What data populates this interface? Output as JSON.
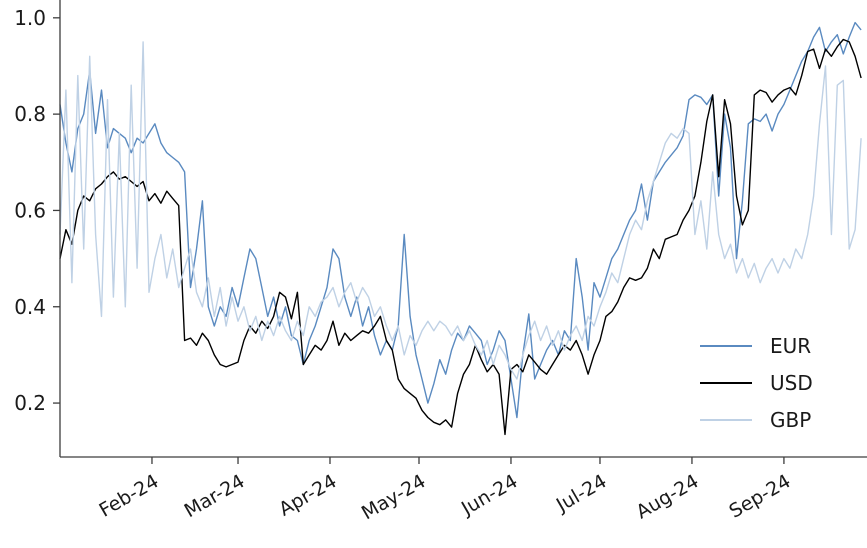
{
  "chart_data": {
    "type": "line",
    "title": "",
    "xlabel": "",
    "ylabel": "",
    "grid": false,
    "legend_position": "lower right",
    "xlim": [
      0,
      272
    ],
    "ylim": [
      0.088,
      1.037
    ],
    "yticks": [
      0.2,
      0.4,
      0.6,
      0.8,
      1.0
    ],
    "ytick_labels": [
      "0.2",
      "0.4",
      "0.6",
      "0.8",
      "1.0"
    ],
    "xticks": {
      "positions": [
        31,
        60,
        91,
        121,
        152,
        182,
        213,
        244
      ],
      "labels": [
        "Feb-24",
        "Mar-24",
        "Apr-24",
        "May-24",
        "Jun-24",
        "Jul-24",
        "Aug-24",
        "Sep-24"
      ]
    },
    "x_unit": "days from start (2-day sampling, Jan 1 to Sep 27, 2024)",
    "x": [
      0,
      2,
      4,
      6,
      8,
      10,
      12,
      14,
      16,
      18,
      20,
      22,
      24,
      26,
      28,
      30,
      32,
      34,
      36,
      38,
      40,
      42,
      44,
      46,
      48,
      50,
      52,
      54,
      56,
      58,
      60,
      62,
      64,
      66,
      68,
      70,
      72,
      74,
      76,
      78,
      80,
      82,
      84,
      86,
      88,
      90,
      92,
      94,
      96,
      98,
      100,
      102,
      104,
      106,
      108,
      110,
      112,
      114,
      116,
      118,
      120,
      122,
      124,
      126,
      128,
      130,
      132,
      134,
      136,
      138,
      140,
      142,
      144,
      146,
      148,
      150,
      152,
      154,
      156,
      158,
      160,
      162,
      164,
      166,
      168,
      170,
      172,
      174,
      176,
      178,
      180,
      182,
      184,
      186,
      188,
      190,
      192,
      194,
      196,
      198,
      200,
      202,
      204,
      206,
      208,
      210,
      212,
      214,
      216,
      218,
      220,
      222,
      224,
      226,
      228,
      230,
      232,
      234,
      236,
      238,
      240,
      242,
      244,
      246,
      248,
      250,
      252,
      254,
      256,
      258,
      260,
      262,
      264,
      266,
      268,
      270
    ],
    "series": [
      {
        "name": "EUR",
        "color": "#5a8ac0",
        "values": [
          0.82,
          0.74,
          0.68,
          0.77,
          0.8,
          0.89,
          0.76,
          0.85,
          0.73,
          0.77,
          0.76,
          0.75,
          0.72,
          0.75,
          0.74,
          0.76,
          0.78,
          0.74,
          0.72,
          0.71,
          0.7,
          0.68,
          0.44,
          0.52,
          0.62,
          0.4,
          0.36,
          0.4,
          0.38,
          0.44,
          0.4,
          0.46,
          0.52,
          0.5,
          0.44,
          0.38,
          0.42,
          0.36,
          0.4,
          0.34,
          0.33,
          0.28,
          0.33,
          0.36,
          0.4,
          0.44,
          0.52,
          0.5,
          0.42,
          0.38,
          0.42,
          0.36,
          0.4,
          0.34,
          0.3,
          0.33,
          0.31,
          0.36,
          0.55,
          0.38,
          0.3,
          0.25,
          0.2,
          0.24,
          0.29,
          0.26,
          0.31,
          0.345,
          0.33,
          0.36,
          0.345,
          0.33,
          0.28,
          0.31,
          0.35,
          0.33,
          0.25,
          0.17,
          0.3,
          0.385,
          0.25,
          0.28,
          0.31,
          0.33,
          0.3,
          0.35,
          0.33,
          0.5,
          0.42,
          0.31,
          0.45,
          0.42,
          0.46,
          0.5,
          0.52,
          0.55,
          0.58,
          0.6,
          0.655,
          0.58,
          0.66,
          0.68,
          0.7,
          0.715,
          0.73,
          0.755,
          0.83,
          0.84,
          0.835,
          0.82,
          0.84,
          0.63,
          0.8,
          0.73,
          0.5,
          0.62,
          0.78,
          0.79,
          0.785,
          0.8,
          0.765,
          0.8,
          0.82,
          0.85,
          0.88,
          0.91,
          0.93,
          0.96,
          0.98,
          0.93,
          0.95,
          0.965,
          0.925,
          0.96,
          0.99,
          0.975
        ]
      },
      {
        "name": "USD",
        "color": "#000000",
        "values": [
          0.5,
          0.56,
          0.53,
          0.6,
          0.63,
          0.62,
          0.645,
          0.655,
          0.67,
          0.68,
          0.665,
          0.67,
          0.66,
          0.65,
          0.66,
          0.62,
          0.635,
          0.615,
          0.64,
          0.625,
          0.61,
          0.33,
          0.335,
          0.32,
          0.345,
          0.33,
          0.3,
          0.28,
          0.275,
          0.28,
          0.285,
          0.33,
          0.36,
          0.345,
          0.37,
          0.355,
          0.38,
          0.43,
          0.42,
          0.375,
          0.43,
          0.28,
          0.3,
          0.32,
          0.31,
          0.33,
          0.37,
          0.32,
          0.345,
          0.33,
          0.34,
          0.35,
          0.345,
          0.36,
          0.38,
          0.33,
          0.31,
          0.25,
          0.23,
          0.22,
          0.21,
          0.185,
          0.17,
          0.16,
          0.155,
          0.165,
          0.15,
          0.22,
          0.26,
          0.28,
          0.32,
          0.29,
          0.265,
          0.28,
          0.26,
          0.135,
          0.27,
          0.28,
          0.265,
          0.3,
          0.285,
          0.27,
          0.26,
          0.28,
          0.3,
          0.32,
          0.31,
          0.33,
          0.3,
          0.26,
          0.3,
          0.33,
          0.38,
          0.39,
          0.41,
          0.44,
          0.46,
          0.455,
          0.46,
          0.48,
          0.52,
          0.5,
          0.54,
          0.545,
          0.55,
          0.58,
          0.6,
          0.63,
          0.7,
          0.785,
          0.84,
          0.67,
          0.83,
          0.78,
          0.63,
          0.57,
          0.6,
          0.84,
          0.85,
          0.845,
          0.825,
          0.84,
          0.85,
          0.855,
          0.84,
          0.88,
          0.93,
          0.935,
          0.895,
          0.935,
          0.92,
          0.94,
          0.955,
          0.95,
          0.92,
          0.875
        ]
      },
      {
        "name": "GBP",
        "color": "#bfd1e5",
        "values": [
          0.55,
          0.85,
          0.45,
          0.88,
          0.52,
          0.92,
          0.55,
          0.38,
          0.83,
          0.42,
          0.76,
          0.4,
          0.86,
          0.48,
          0.95,
          0.43,
          0.5,
          0.55,
          0.46,
          0.52,
          0.44,
          0.48,
          0.52,
          0.43,
          0.4,
          0.46,
          0.38,
          0.44,
          0.36,
          0.42,
          0.37,
          0.4,
          0.35,
          0.38,
          0.33,
          0.37,
          0.34,
          0.38,
          0.35,
          0.33,
          0.37,
          0.34,
          0.4,
          0.38,
          0.41,
          0.42,
          0.44,
          0.4,
          0.43,
          0.45,
          0.41,
          0.44,
          0.42,
          0.38,
          0.4,
          0.36,
          0.33,
          0.36,
          0.3,
          0.34,
          0.32,
          0.35,
          0.37,
          0.35,
          0.37,
          0.36,
          0.34,
          0.36,
          0.33,
          0.35,
          0.32,
          0.3,
          0.33,
          0.28,
          0.32,
          0.3,
          0.27,
          0.25,
          0.3,
          0.34,
          0.37,
          0.33,
          0.36,
          0.32,
          0.35,
          0.31,
          0.34,
          0.36,
          0.33,
          0.38,
          0.36,
          0.4,
          0.43,
          0.47,
          0.45,
          0.5,
          0.55,
          0.58,
          0.56,
          0.62,
          0.66,
          0.7,
          0.74,
          0.76,
          0.75,
          0.77,
          0.76,
          0.55,
          0.62,
          0.52,
          0.68,
          0.55,
          0.5,
          0.53,
          0.47,
          0.5,
          0.46,
          0.49,
          0.45,
          0.48,
          0.5,
          0.47,
          0.5,
          0.48,
          0.52,
          0.5,
          0.55,
          0.63,
          0.78,
          0.9,
          0.55,
          0.86,
          0.87,
          0.52,
          0.56,
          0.75
        ]
      }
    ],
    "style": {
      "spine_color": "#3d3d3d",
      "tick_label_color": "#1a1a1a",
      "line_width": 1.4
    }
  }
}
